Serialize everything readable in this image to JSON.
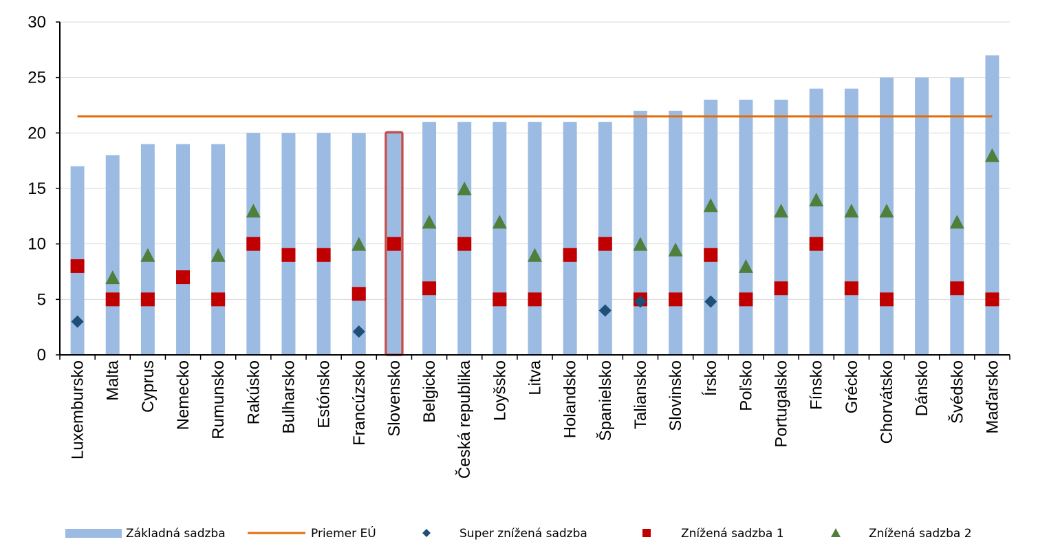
{
  "chart_data": {
    "type": "bar",
    "ylim": [
      0,
      30
    ],
    "yticks": [
      0,
      5,
      10,
      15,
      20,
      25,
      30
    ],
    "grid": true,
    "legend_position": "bottom",
    "highlight_category": "Slovensko",
    "categories": [
      "Luxembursko",
      "Malta",
      "Cyprus",
      "Nemecko",
      "Rumunsko",
      "Rakúsko",
      "Bulharsko",
      "Estónsko",
      "Francúzsko",
      "Slovensko",
      "Belgicko",
      "Česká republika",
      "Loyšsko",
      "Litva",
      "Holandsko",
      "Španielsko",
      "Taliansko",
      "Slovinsko",
      "Írsko",
      "Poľsko",
      "Portugalsko",
      "Fínsko",
      "Grécko",
      "Chorvátsko",
      "Dánsko",
      "Švédsko",
      "Maďarsko"
    ],
    "series": [
      {
        "name": "Základná sadzba",
        "kind": "bar",
        "color": "#9BBBE3",
        "values": [
          17,
          18,
          19,
          19,
          19,
          20,
          20,
          20,
          20,
          20,
          21,
          21,
          21,
          21,
          21,
          21,
          22,
          22,
          23,
          23,
          23,
          24,
          24,
          25,
          25,
          25,
          27
        ]
      },
      {
        "name": "Priemer EÚ",
        "kind": "line",
        "color": "#E36C09",
        "value": 21.5
      },
      {
        "name": "Super znížená sadzba",
        "kind": "diamond",
        "color": "#1F4E79",
        "values": [
          3,
          null,
          null,
          null,
          null,
          null,
          null,
          null,
          2.1,
          null,
          null,
          null,
          null,
          null,
          null,
          4,
          4.8,
          null,
          4.8,
          null,
          null,
          null,
          null,
          null,
          null,
          null,
          null
        ]
      },
      {
        "name": "Znížená sadzba 1",
        "kind": "square",
        "color": "#C00000",
        "values": [
          8,
          5,
          5,
          7,
          5,
          10,
          9,
          9,
          5.5,
          10,
          6,
          10,
          5,
          5,
          9,
          10,
          5,
          5,
          9,
          5,
          6,
          10,
          6,
          5,
          null,
          6,
          5
        ]
      },
      {
        "name": "Znížená sadzba 2",
        "kind": "triangle",
        "color": "#4F7F3A",
        "values": [
          null,
          7,
          9,
          null,
          9,
          13,
          null,
          null,
          10,
          null,
          12,
          15,
          12,
          9,
          null,
          null,
          10,
          9.5,
          13.5,
          8,
          13,
          14,
          13,
          13,
          null,
          12,
          18
        ]
      }
    ]
  }
}
